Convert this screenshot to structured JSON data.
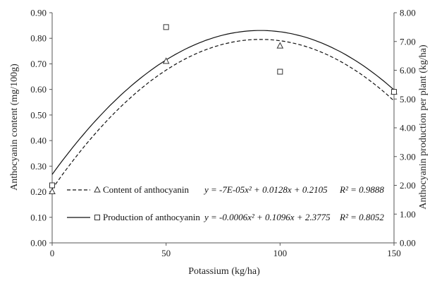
{
  "chart_data": {
    "type": "scatter",
    "xlabel": "Potassium (kg/ha)",
    "ylabel_left": "Anthocyanin content (mg/100g)",
    "ylabel_right": "Anthocyanin production per plant (kg/ha)",
    "xlim": [
      0,
      150
    ],
    "ylim_left": [
      0,
      0.9
    ],
    "ylim_right": [
      0,
      8
    ],
    "x_ticks": [
      "0",
      "50",
      "100",
      "150"
    ],
    "y_ticks_left": [
      "0.00",
      "0.10",
      "0.20",
      "0.30",
      "0.40",
      "0.50",
      "0.60",
      "0.70",
      "0.80",
      "0.90"
    ],
    "y_ticks_right": [
      "0.00",
      "1.00",
      "2.00",
      "3.00",
      "4.00",
      "5.00",
      "6.00",
      "7.00",
      "8.00"
    ],
    "grid": false,
    "legend_position": "bottom-left (inside plot)",
    "series": [
      {
        "name": "Content of anthocyanin",
        "axis": "left",
        "marker": "triangle",
        "trend_style": "dashed",
        "x": [
          0,
          50,
          100,
          150
        ],
        "y": [
          0.2,
          0.71,
          0.77,
          0.59
        ],
        "equation": "y = -7E-05x² + 0.0128x + 0.2105",
        "r2": "R² = 0.9888",
        "trend": {
          "a": -7e-05,
          "b": 0.0128,
          "c": 0.2105
        }
      },
      {
        "name": "Production of anthocyanin",
        "axis": "right",
        "marker": "square",
        "trend_style": "solid",
        "x": [
          0,
          50,
          100,
          150
        ],
        "y": [
          2.0,
          7.5,
          5.95,
          5.25
        ],
        "equation": "y = -0.0006x² + 0.1096x + 2.3775",
        "r2": "R² = 0.8052",
        "trend": {
          "a": -0.0006,
          "b": 0.1096,
          "c": 2.3775
        }
      }
    ]
  }
}
